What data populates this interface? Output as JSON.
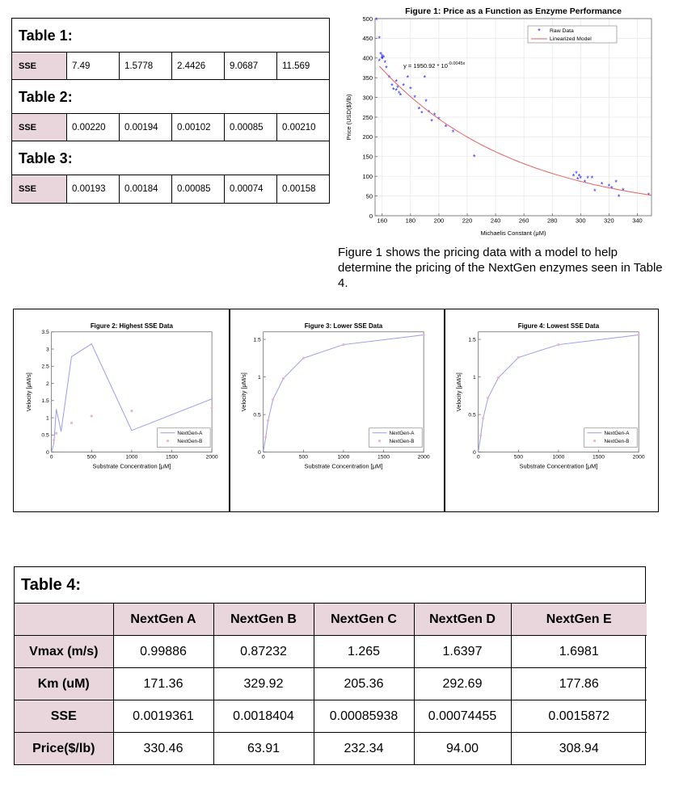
{
  "tables": [
    {
      "title": "Table 1:",
      "label": "SSE",
      "values": [
        "7.49",
        "1.5778",
        "2.4426",
        "9.0687",
        "11.569"
      ]
    },
    {
      "title": "Table 2:",
      "label": "SSE",
      "values": [
        "0.00220",
        "0.00194",
        "0.00102",
        "0.00085",
        "0.00210"
      ]
    },
    {
      "title": "Table 3:",
      "label": "SSE",
      "values": [
        "0.00193",
        "0.00184",
        "0.00085",
        "0.00074",
        "0.00158"
      ]
    }
  ],
  "figure1_caption": "Figure 1 shows the pricing data with a model to help determine the pricing of the NextGen enzymes seen in Table 4.",
  "table4": {
    "title": "Table 4:",
    "columns": [
      "",
      "NextGen A",
      "NextGen B",
      "NextGen C",
      "NextGen D",
      "NextGen E"
    ],
    "rows": [
      {
        "label": "Vmax (m/s)",
        "values": [
          "0.99886",
          "0.87232",
          "1.265",
          "1.6397",
          "1.6981"
        ]
      },
      {
        "label": "Km (uM)",
        "values": [
          "171.36",
          "329.92",
          "205.36",
          "292.69",
          "177.86"
        ]
      },
      {
        "label": "SSE",
        "values": [
          "0.0019361",
          "0.0018404",
          "0.00085938",
          "0.00074455",
          "0.0015872"
        ]
      },
      {
        "label": "Price($/lb)",
        "values": [
          "330.46",
          "63.91",
          "232.34",
          "94.00",
          "308.94"
        ]
      }
    ]
  },
  "chart_data": [
    {
      "type": "scatter",
      "title": "Figure 1: Price as a Function as Enzyme Performance",
      "xlabel": "Michaelis Constant (μM)",
      "ylabel": "Price (USD($)/lb)",
      "xlim": [
        155,
        350
      ],
      "ylim": [
        0,
        500
      ],
      "xticks": [
        160,
        180,
        200,
        220,
        240,
        260,
        280,
        300,
        320,
        340
      ],
      "yticks": [
        0,
        50,
        100,
        150,
        200,
        250,
        300,
        350,
        400,
        450,
        500
      ],
      "grid": true,
      "legend_position": "top-right",
      "equation": "y = 1950.92 * 10",
      "equation_exponent": "-0.0045x",
      "series": [
        {
          "name": "Raw Data",
          "color": "#1a1aff",
          "points": [
            [
              156,
              497
            ],
            [
              158,
              450
            ],
            [
              159,
              410
            ],
            [
              160,
              405
            ],
            [
              160,
              400
            ],
            [
              161,
              402
            ],
            [
              160,
              398
            ],
            [
              158,
              392
            ],
            [
              162,
              388
            ],
            [
              163,
              375
            ],
            [
              165,
              350
            ],
            [
              167,
              330
            ],
            [
              168,
              320
            ],
            [
              170,
              340
            ],
            [
              170,
              318
            ],
            [
              171,
              325
            ],
            [
              172,
              310
            ],
            [
              173,
              305
            ],
            [
              175,
              330
            ],
            [
              178,
              350
            ],
            [
              180,
              322
            ],
            [
              183,
              300
            ],
            [
              186,
              270
            ],
            [
              188,
              260
            ],
            [
              190,
              350
            ],
            [
              191,
              290
            ],
            [
              193,
              262
            ],
            [
              195,
              240
            ],
            [
              197,
              255
            ],
            [
              200,
              245
            ],
            [
              205,
              225
            ],
            [
              210,
              212
            ],
            [
              225,
              150
            ],
            [
              295,
              100
            ],
            [
              297,
              108
            ],
            [
              298,
              92
            ],
            [
              299,
              100
            ],
            [
              300,
              95
            ],
            [
              303,
              85
            ],
            [
              305,
              95
            ],
            [
              308,
              95
            ],
            [
              310,
              62
            ],
            [
              315,
              80
            ],
            [
              320,
              75
            ],
            [
              322,
              70
            ],
            [
              325,
              85
            ],
            [
              327,
              48
            ],
            [
              330,
              65
            ],
            [
              348,
              52
            ]
          ]
        },
        {
          "name": "Linearized Model",
          "color": "#e06060",
          "line": true,
          "model": {
            "a": 1950.92,
            "b": -0.0045
          },
          "range": [
            158,
            350
          ]
        }
      ]
    },
    {
      "type": "line",
      "title": "Figure 2: Highest SSE Data",
      "xlabel": "Substrate Concentration [μM]",
      "ylabel": "Velocity [μM/s]",
      "xlim": [
        0,
        2000
      ],
      "ylim": [
        0,
        3.5
      ],
      "xticks": [
        0,
        500,
        1000,
        1500,
        2000
      ],
      "yticks": [
        0,
        0.5,
        1,
        1.5,
        2,
        2.5,
        3,
        3.5
      ],
      "legend_position": "bottom-right",
      "series": [
        {
          "name": "NextGen-A",
          "color": "#9a9af0",
          "line": true,
          "points": [
            [
              0,
              0
            ],
            [
              30,
              0.25
            ],
            [
              60,
              1.25
            ],
            [
              120,
              0.6
            ],
            [
              250,
              2.78
            ],
            [
              500,
              3.15
            ],
            [
              1000,
              0.63
            ],
            [
              2000,
              1.55
            ]
          ]
        },
        {
          "name": "NextGen-B",
          "color": "#e8b8c8",
          "points": [
            [
              30,
              0.35
            ],
            [
              60,
              0.55
            ],
            [
              250,
              0.85
            ],
            [
              500,
              1.05
            ],
            [
              1000,
              1.2
            ],
            [
              2000,
              1.28
            ]
          ]
        }
      ]
    },
    {
      "type": "line",
      "title": "Figure 3: Lower SSE Data",
      "xlabel": "Substrate Concentration [μM]",
      "ylabel": "Velocity [μM/s]",
      "xlim": [
        0,
        2000
      ],
      "ylim": [
        0,
        1.6
      ],
      "xticks": [
        0,
        500,
        1000,
        1500,
        2000
      ],
      "yticks": [
        0,
        0.5,
        1,
        1.5
      ],
      "legend_position": "bottom-right",
      "series": [
        {
          "name": "NextGen-A",
          "color": "#9a9af0",
          "line": true,
          "points": [
            [
              0,
              0
            ],
            [
              30,
              0.2
            ],
            [
              60,
              0.42
            ],
            [
              120,
              0.7
            ],
            [
              250,
              0.98
            ],
            [
              500,
              1.25
            ],
            [
              1000,
              1.43
            ],
            [
              2000,
              1.56
            ]
          ]
        },
        {
          "name": "NextGen-B",
          "color": "#e8b8c8",
          "points": [
            [
              30,
              0.2
            ],
            [
              60,
              0.42
            ],
            [
              120,
              0.7
            ],
            [
              250,
              0.98
            ],
            [
              500,
              1.25
            ],
            [
              1000,
              1.43
            ],
            [
              2000,
              1.56
            ]
          ]
        }
      ]
    },
    {
      "type": "line",
      "title": "Figure 4: Lowest SSE Data",
      "xlabel": "Substrate Concentration [μM]",
      "ylabel": "Velocity [μM/s]",
      "xlim": [
        0,
        2000
      ],
      "ylim": [
        0,
        1.6
      ],
      "xticks": [
        0,
        500,
        1000,
        1500,
        2000
      ],
      "yticks": [
        0,
        0.5,
        1,
        1.5
      ],
      "legend_position": "bottom-right",
      "series": [
        {
          "name": "NextGen-A",
          "color": "#9a9af0",
          "line": true,
          "points": [
            [
              0,
              0
            ],
            [
              30,
              0.22
            ],
            [
              60,
              0.45
            ],
            [
              120,
              0.72
            ],
            [
              250,
              0.99
            ],
            [
              500,
              1.26
            ],
            [
              1000,
              1.43
            ],
            [
              2000,
              1.56
            ]
          ]
        },
        {
          "name": "NextGen-B",
          "color": "#e8b8c8",
          "points": [
            [
              30,
              0.22
            ],
            [
              60,
              0.45
            ],
            [
              120,
              0.72
            ],
            [
              250,
              0.99
            ],
            [
              500,
              1.26
            ],
            [
              1000,
              1.43
            ],
            [
              2000,
              1.56
            ]
          ]
        }
      ]
    }
  ]
}
